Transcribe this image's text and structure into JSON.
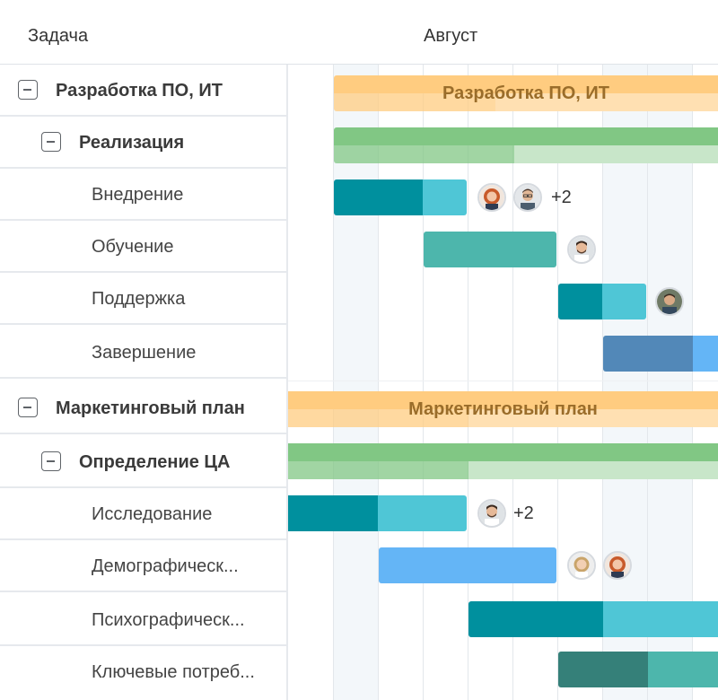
{
  "header": {
    "task_column": "Задача",
    "month": "Август"
  },
  "tasks": [
    {
      "label": "Разработка ПО, ИТ",
      "level": 0,
      "collapsible": true
    },
    {
      "label": "Реализация",
      "level": 1,
      "collapsible": true
    },
    {
      "label": "Внедрение",
      "level": 2,
      "collapsible": false
    },
    {
      "label": "Обучение",
      "level": 2,
      "collapsible": false
    },
    {
      "label": "Поддержка",
      "level": 2,
      "collapsible": false
    },
    {
      "label": "Завершение",
      "level": 2,
      "collapsible": false
    },
    {
      "label": "Маркетинговый план",
      "level": 0,
      "collapsible": true
    },
    {
      "label": "Определение ЦА",
      "level": 1,
      "collapsible": true
    },
    {
      "label": "Исследование",
      "level": 2,
      "collapsible": false
    },
    {
      "label": "Демографическ...",
      "level": 2,
      "collapsible": false
    },
    {
      "label": "Психографическ...",
      "level": 2,
      "collapsible": false
    },
    {
      "label": "Ключевые потреб...",
      "level": 2,
      "collapsible": false
    }
  ],
  "bars": {
    "software_summary": {
      "label": "Разработка ПО, ИТ",
      "color": "#ffcc80",
      "progress_color": "#ffe0b2"
    },
    "realization_summary": {
      "color": "#81c784",
      "progress_color": "#c8e6c9"
    },
    "deployment": {
      "done_color": "#00909e",
      "rest_color": "#4fc6d6",
      "progress": 0.67,
      "extra_assignees": "+2",
      "avatars": [
        "woman-redhead-avatar",
        "man-glasses-avatar"
      ]
    },
    "training": {
      "done_color": "#4db6ac",
      "rest_color": "#4db6ac",
      "progress": 1.0,
      "avatars": [
        "man-beard-avatar"
      ]
    },
    "support": {
      "done_color": "#00909e",
      "rest_color": "#4fc6d6",
      "progress": 0.5,
      "avatars": [
        "man-short-hair-avatar"
      ]
    },
    "completion": {
      "done_color": "#5288b8",
      "rest_color": "#64b5f6",
      "progress": 0.5
    },
    "marketing_summary": {
      "label": "Маркетинговый план",
      "color": "#ffcc80",
      "progress_color": "#ffe0b2"
    },
    "audience_summary": {
      "color": "#81c784",
      "progress_color": "#c8e6c9"
    },
    "research": {
      "done_color": "#00909e",
      "rest_color": "#4fc6d6",
      "progress": 0.5,
      "extra_assignees": "+2",
      "avatars": [
        "man-beard-avatar"
      ]
    },
    "demographic": {
      "done_color": "#64b5f6",
      "rest_color": "#64b5f6",
      "progress": 1.0,
      "avatars": [
        "woman-blonde-avatar",
        "woman-redhead-avatar"
      ]
    },
    "psychographic": {
      "done_color": "#00909e",
      "rest_color": "#4fc6d6",
      "progress": 0.5
    },
    "needs": {
      "done_color": "#358079",
      "rest_color": "#4db6ac",
      "progress": 0.5
    }
  }
}
